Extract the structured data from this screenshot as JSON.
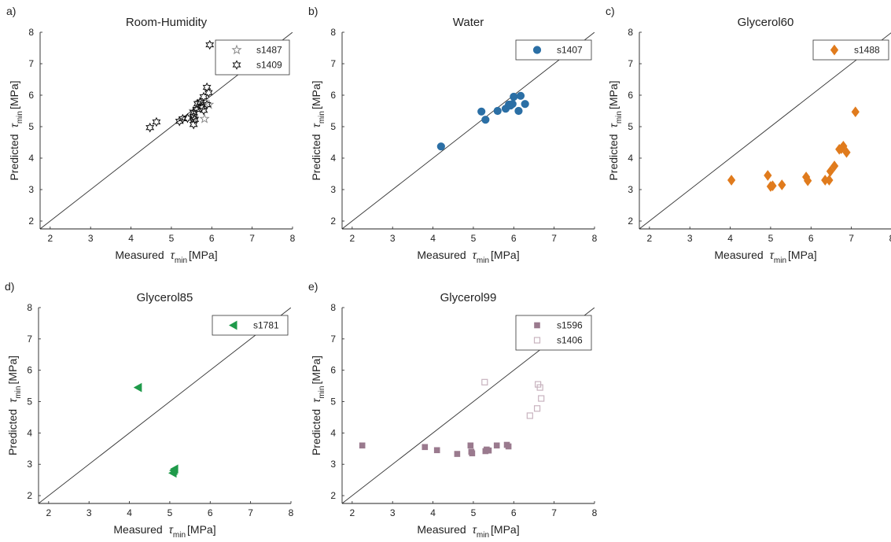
{
  "chart_data": [
    {
      "id": "a",
      "type": "scatter",
      "panel_label": "a)",
      "title": "Room-Humidity",
      "xlabel": "Measured",
      "ylabel": "Predicted",
      "tau_symbol": "τ",
      "tau_subscript": "min",
      "unit": "[MPa]",
      "xlim": [
        1.75,
        8
      ],
      "ylim": [
        1.75,
        8
      ],
      "xticks": [
        2,
        3,
        4,
        5,
        6,
        7,
        8
      ],
      "yticks": [
        2,
        3,
        4,
        5,
        6,
        7,
        8
      ],
      "legend_position": "top-right",
      "series": [
        {
          "name": "s1487",
          "marker": "star5",
          "color": "#8a8a8a",
          "points": [
            [
              5.55,
              5.3
            ],
            [
              5.82,
              5.25
            ],
            [
              5.93,
              5.7
            ],
            [
              5.55,
              5.5
            ],
            [
              5.7,
              5.78
            ]
          ]
        },
        {
          "name": "s1409",
          "marker": "star6",
          "color": "#111111",
          "points": [
            [
              4.47,
              4.97
            ],
            [
              4.63,
              5.15
            ],
            [
              5.2,
              5.17
            ],
            [
              5.28,
              5.25
            ],
            [
              5.4,
              5.27
            ],
            [
              5.55,
              5.07
            ],
            [
              5.55,
              5.32
            ],
            [
              5.55,
              5.45
            ],
            [
              5.58,
              5.23
            ],
            [
              5.62,
              5.55
            ],
            [
              5.65,
              5.73
            ],
            [
              5.72,
              5.78
            ],
            [
              5.75,
              5.62
            ],
            [
              5.8,
              5.52
            ],
            [
              5.8,
              5.95
            ],
            [
              5.88,
              5.7
            ],
            [
              5.92,
              6.08
            ],
            [
              5.88,
              6.25
            ],
            [
              5.95,
              7.6
            ]
          ]
        }
      ]
    },
    {
      "id": "b",
      "type": "scatter",
      "panel_label": "b)",
      "title": "Water",
      "xlabel": "Measured",
      "ylabel": "Predicted",
      "tau_symbol": "τ",
      "tau_subscript": "min",
      "unit": "[MPa]",
      "xlim": [
        1.75,
        8
      ],
      "ylim": [
        1.75,
        8
      ],
      "xticks": [
        2,
        3,
        4,
        5,
        6,
        7,
        8
      ],
      "yticks": [
        2,
        3,
        4,
        5,
        6,
        7,
        8
      ],
      "legend_position": "top-right",
      "series": [
        {
          "name": "s1407",
          "marker": "circle",
          "color": "#2b6fa5",
          "points": [
            [
              4.2,
              4.37
            ],
            [
              5.2,
              5.48
            ],
            [
              5.3,
              5.22
            ],
            [
              5.6,
              5.5
            ],
            [
              5.8,
              5.57
            ],
            [
              5.88,
              5.7
            ],
            [
              5.92,
              5.67
            ],
            [
              5.97,
              5.72
            ],
            [
              6.0,
              5.95
            ],
            [
              6.12,
              5.5
            ],
            [
              6.17,
              5.98
            ],
            [
              6.28,
              5.72
            ]
          ]
        }
      ]
    },
    {
      "id": "c",
      "type": "scatter",
      "panel_label": "c)",
      "title": "Glycerol60",
      "xlabel": "Measured",
      "ylabel": "Predicted",
      "tau_symbol": "τ",
      "tau_subscript": "min",
      "unit": "[MPa]",
      "xlim": [
        1.75,
        8
      ],
      "ylim": [
        1.75,
        8
      ],
      "xticks": [
        2,
        3,
        4,
        5,
        6,
        7,
        8
      ],
      "yticks": [
        2,
        3,
        4,
        5,
        6,
        7,
        8
      ],
      "legend_position": "top-right",
      "series": [
        {
          "name": "s1488",
          "marker": "diamond",
          "color": "#e07b1d",
          "points": [
            [
              4.03,
              3.3
            ],
            [
              4.93,
              3.45
            ],
            [
              5.0,
              3.1
            ],
            [
              5.05,
              3.12
            ],
            [
              5.28,
              3.15
            ],
            [
              5.88,
              3.4
            ],
            [
              5.92,
              3.28
            ],
            [
              6.35,
              3.3
            ],
            [
              6.45,
              3.3
            ],
            [
              6.48,
              3.58
            ],
            [
              6.58,
              3.75
            ],
            [
              6.7,
              4.28
            ],
            [
              6.8,
              4.38
            ],
            [
              6.75,
              4.3
            ],
            [
              6.88,
              4.18
            ],
            [
              7.1,
              5.47
            ]
          ]
        }
      ]
    },
    {
      "id": "d",
      "type": "scatter",
      "panel_label": "d)",
      "title": "Glycerol85",
      "xlabel": "Measured",
      "ylabel": "Predicted",
      "tau_symbol": "τ",
      "tau_subscript": "min",
      "unit": "[MPa]",
      "xlim": [
        1.75,
        8
      ],
      "ylim": [
        1.75,
        8
      ],
      "xticks": [
        2,
        3,
        4,
        5,
        6,
        7,
        8
      ],
      "yticks": [
        2,
        3,
        4,
        5,
        6,
        7,
        8
      ],
      "legend_position": "top-right",
      "series": [
        {
          "name": "s1781",
          "marker": "triangle-left",
          "color": "#1f9a4a",
          "points": [
            [
              4.22,
              5.45
            ],
            [
              5.08,
              2.72
            ],
            [
              5.12,
              2.85
            ],
            [
              5.1,
              2.8
            ]
          ]
        }
      ]
    },
    {
      "id": "e",
      "type": "scatter",
      "panel_label": "e)",
      "title": "Glycerol99",
      "xlabel": "Measured",
      "ylabel": "Predicted",
      "tau_symbol": "τ",
      "tau_subscript": "min",
      "unit": "[MPa]",
      "xlim": [
        1.75,
        8
      ],
      "ylim": [
        1.75,
        8
      ],
      "xticks": [
        2,
        3,
        4,
        5,
        6,
        7,
        8
      ],
      "yticks": [
        2,
        3,
        4,
        5,
        6,
        7,
        8
      ],
      "legend_position": "top-right",
      "series": [
        {
          "name": "s1596",
          "marker": "square",
          "color": "#9a7a8e",
          "points": [
            [
              2.25,
              3.6
            ],
            [
              3.8,
              3.55
            ],
            [
              4.1,
              3.45
            ],
            [
              4.6,
              3.33
            ],
            [
              4.93,
              3.6
            ],
            [
              4.97,
              3.35
            ],
            [
              4.95,
              3.4
            ],
            [
              5.3,
              3.42
            ],
            [
              5.33,
              3.47
            ],
            [
              5.38,
              3.44
            ],
            [
              5.58,
              3.6
            ],
            [
              5.83,
              3.62
            ],
            [
              5.87,
              3.57
            ]
          ]
        },
        {
          "name": "s1406",
          "marker": "square-open",
          "color": "#c8b3bf",
          "points": [
            [
              5.28,
              5.62
            ],
            [
              6.4,
              4.55
            ],
            [
              6.58,
              4.78
            ],
            [
              6.6,
              5.55
            ],
            [
              6.65,
              5.45
            ],
            [
              6.68,
              5.1
            ]
          ]
        }
      ]
    }
  ]
}
